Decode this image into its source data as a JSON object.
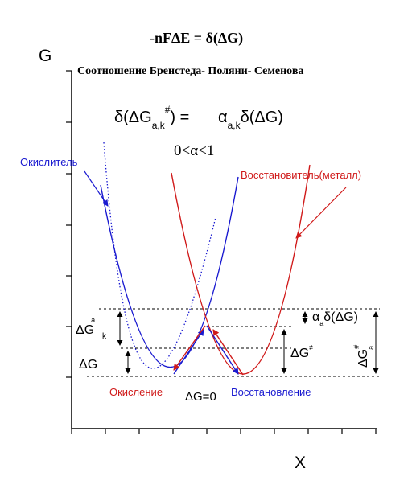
{
  "axes": {
    "y_label": "G",
    "x_label": "X"
  },
  "heading": {
    "equation": "-nFΔE = δ(ΔG)",
    "subtitle": "Соотношение Бренстеда- Поляни- Семенова",
    "relation_left": "δ(ΔG",
    "relation_sub": "a,k",
    "relation_sup": "#",
    "relation_mid": ") =",
    "relation_alpha": "α",
    "relation_alpha_sub": "a,k",
    "relation_right": "δ(ΔG)",
    "alpha_range": "0<α<1"
  },
  "curve_labels": {
    "oxidant": "Окислитель",
    "reductant": "Восстановитель(металл)",
    "oxidation": "Окисление",
    "reduction": "Восстановление",
    "dg_zero": "ΔG=0"
  },
  "annotations": {
    "dg_k_base": "ΔG",
    "dg_k_sup": "a",
    "dg_k_sub": "k",
    "dg": "ΔG",
    "dg_hash_base": "ΔG",
    "dg_hash_sup": "≠",
    "alpha_dg_alpha": "α",
    "alpha_dg_sub": "a",
    "alpha_dg_rest": "δ(ΔG)",
    "dg_a_base": "ΔG",
    "dg_a_sup": "#",
    "dg_a_sub": "a"
  },
  "colors": {
    "oxidant": "#1a1ad0",
    "reductant": "#d01a1a",
    "axis": "#000000"
  }
}
